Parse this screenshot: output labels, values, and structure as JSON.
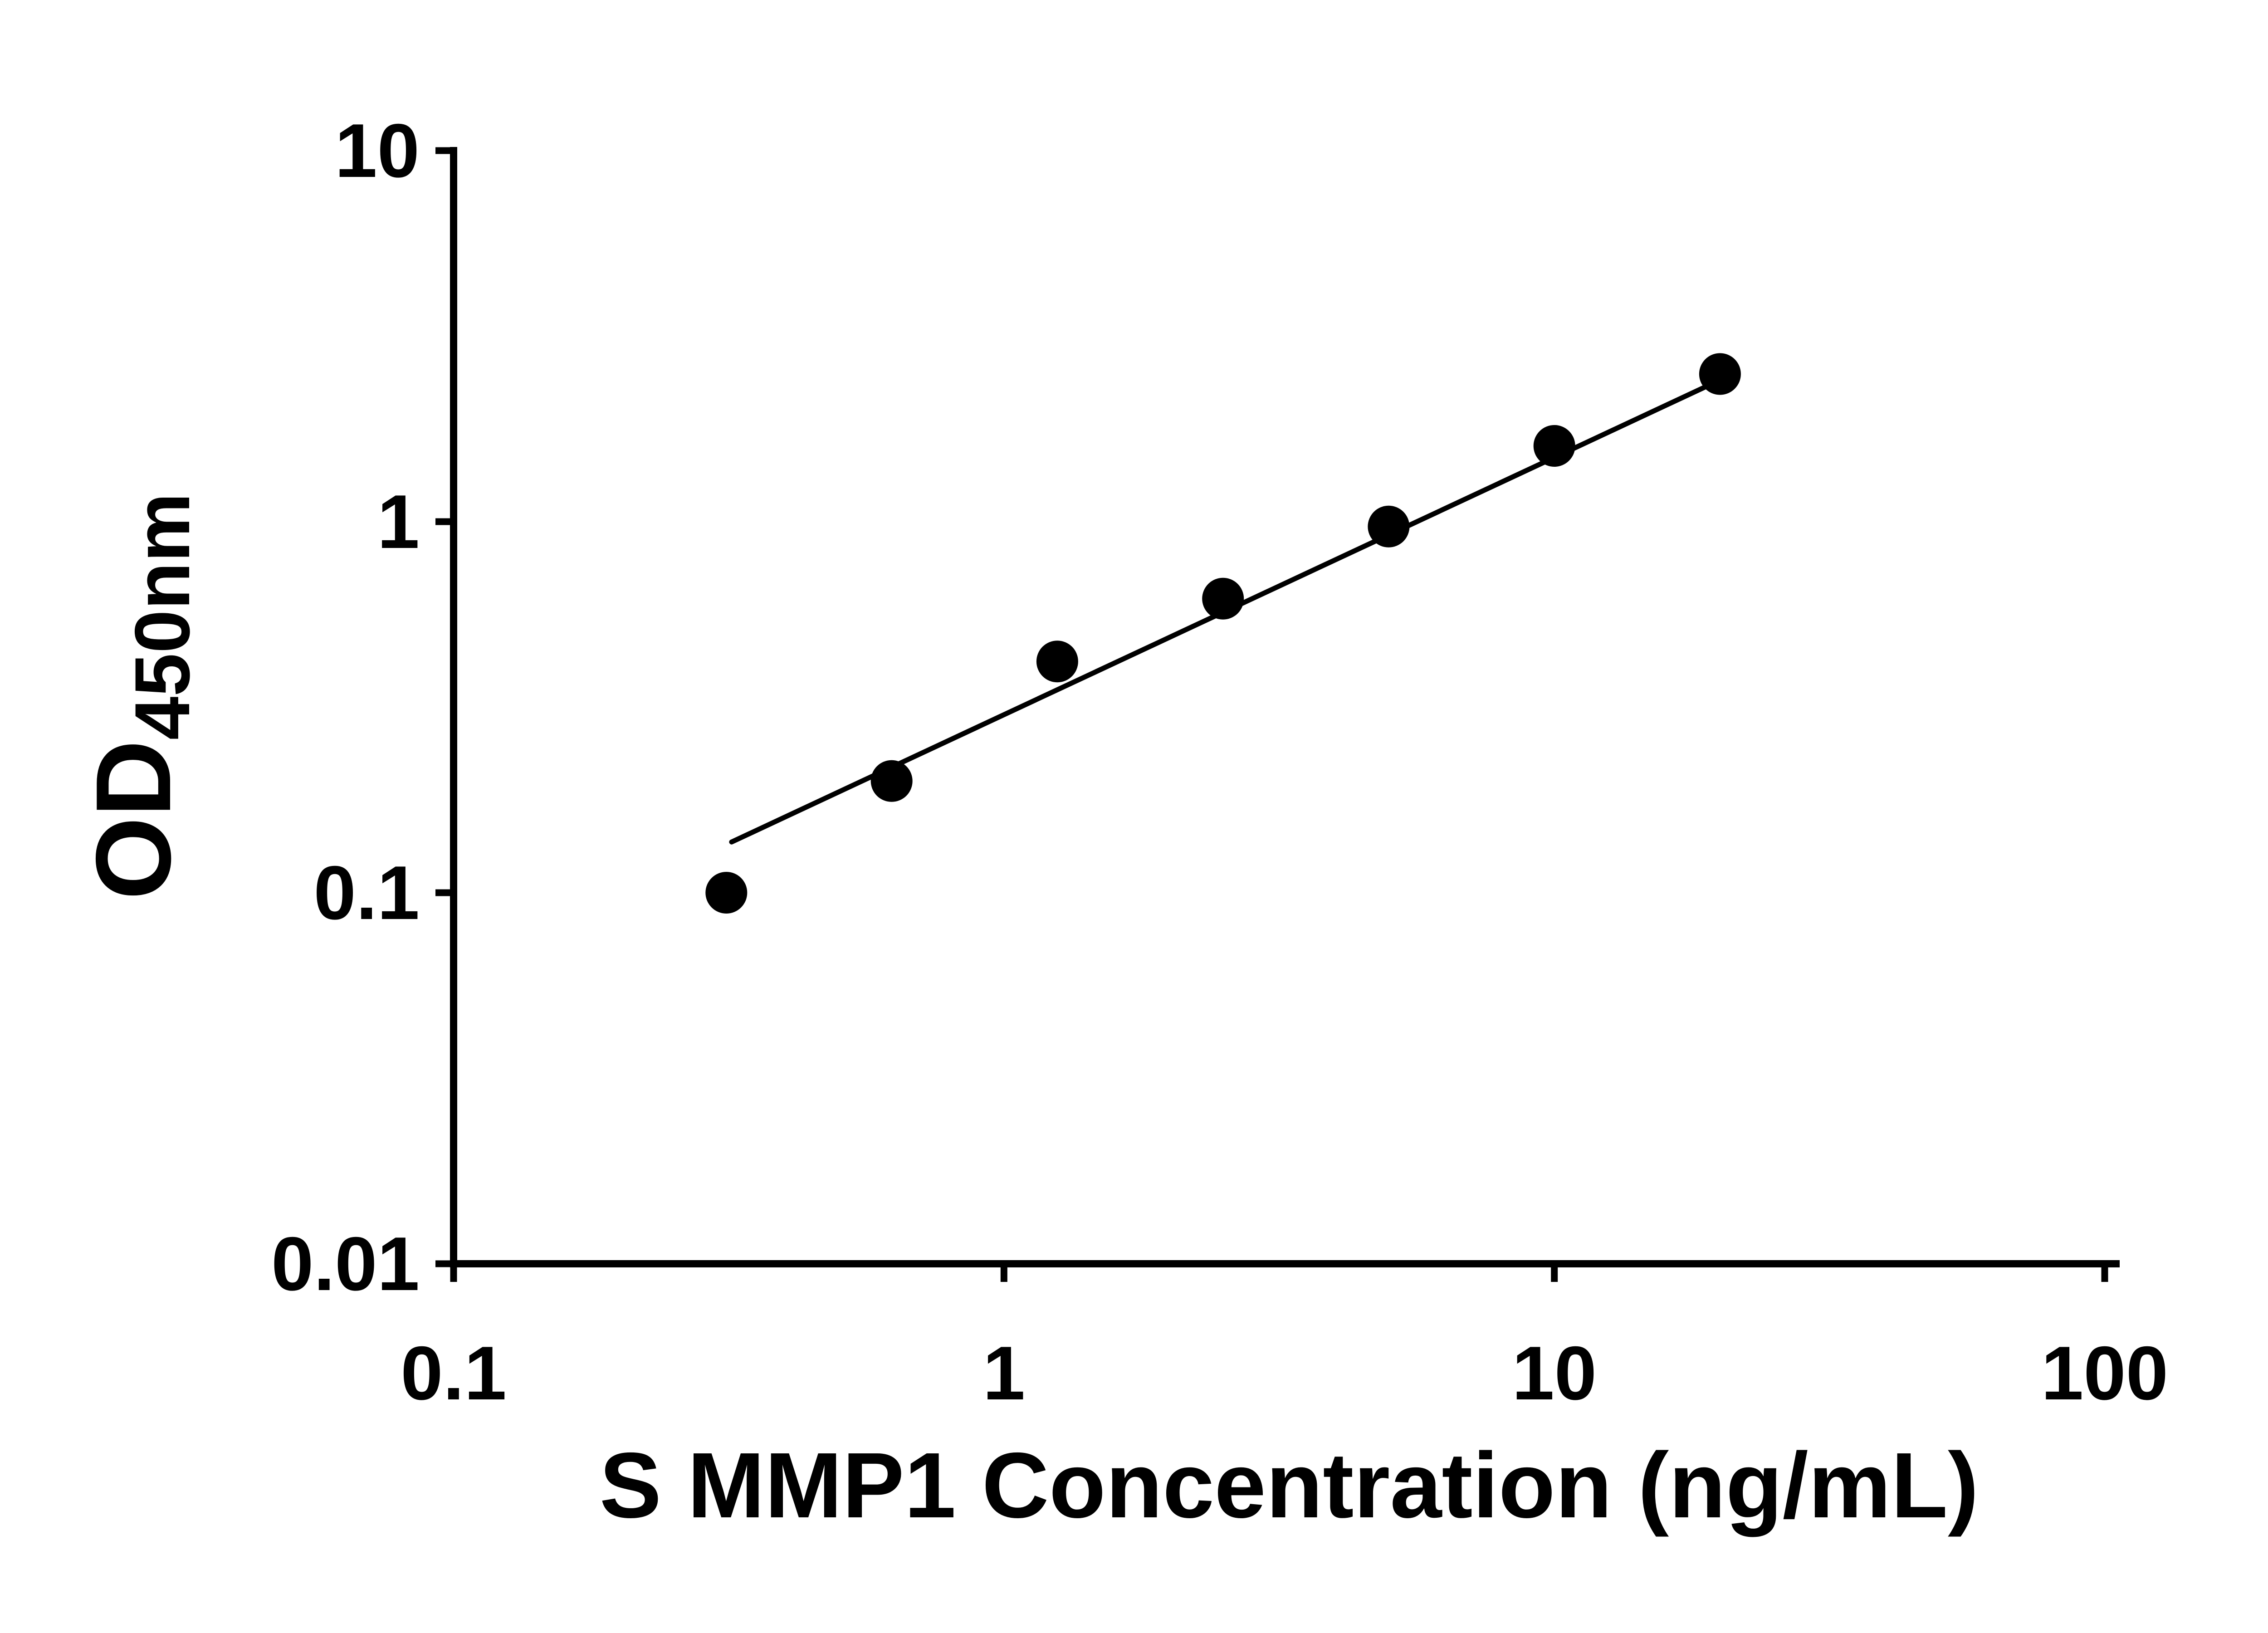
{
  "chart_data": {
    "type": "scatter",
    "title": "",
    "xlabel": "S MMP1 Concentration (ng/mL)",
    "ylabel": "OD",
    "ylabel_sub": "450nm",
    "x_scale": "log",
    "y_scale": "log",
    "xlim": [
      0.1,
      100
    ],
    "ylim": [
      0.01,
      10
    ],
    "grid": false,
    "legend": "none",
    "x_ticks": {
      "values": [
        0.1,
        1,
        10,
        100
      ],
      "labels": [
        "0.1",
        "1",
        "10",
        "100"
      ]
    },
    "y_ticks": {
      "values": [
        0.01,
        0.1,
        1,
        10
      ],
      "labels": [
        "0.01",
        "0.1",
        "1",
        "10"
      ]
    },
    "series": [
      {
        "name": "standard-points",
        "type": "scatter",
        "x": [
          0.313,
          0.625,
          1.25,
          2.5,
          5,
          10,
          20
        ],
        "y": [
          0.1,
          0.2,
          0.42,
          0.62,
          0.97,
          1.6,
          2.5
        ],
        "marker": "circle",
        "marker_color": "#000000"
      },
      {
        "name": "fit-line",
        "type": "line",
        "x": [
          0.32,
          19.9
        ],
        "y": [
          0.137,
          2.4
        ],
        "line_color": "#000000"
      }
    ],
    "colors": {
      "axis": "#000000",
      "text": "#000000",
      "background": "#ffffff"
    }
  }
}
